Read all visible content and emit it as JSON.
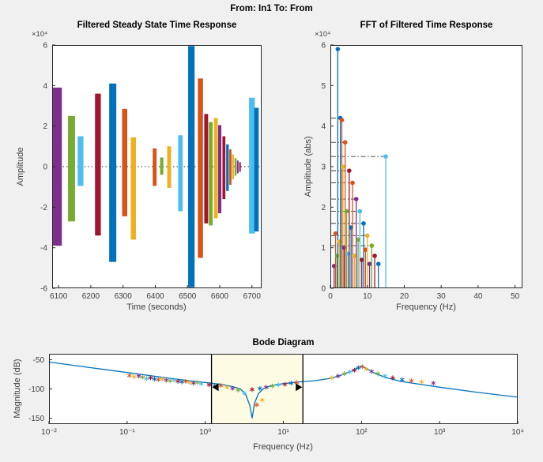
{
  "figure": {
    "title": "From: In1  To: From",
    "background": "#f0f0f0"
  },
  "palette": [
    "#0072BD",
    "#D95319",
    "#EDB120",
    "#7E2F8E",
    "#77AC30",
    "#4DBEEE",
    "#A2142F"
  ],
  "chart_data": [
    {
      "id": "time_response",
      "type": "bar",
      "title": "Filtered Steady State Time Response",
      "xlabel": "Time (seconds)",
      "ylabel": "Amplitude",
      "y_exponent": "×10⁴",
      "xlim": [
        6080,
        6730
      ],
      "ylim": [
        -6,
        6
      ],
      "xticks": [
        6100,
        6200,
        6300,
        6400,
        6500,
        6600,
        6700
      ],
      "yticks": [
        -6,
        -4,
        -2,
        0,
        2,
        4,
        6
      ],
      "zero_line_y": 0,
      "bars": [
        {
          "t": 6095,
          "w": 30,
          "lo": -3.9,
          "hi": 3.9,
          "c": 3
        },
        {
          "t": 6140,
          "w": 22,
          "lo": -2.7,
          "hi": 2.5,
          "c": 4
        },
        {
          "t": 6168,
          "w": 18,
          "lo": -0.95,
          "hi": 1.5,
          "c": 5
        },
        {
          "t": 6222,
          "w": 18,
          "lo": -3.4,
          "hi": 3.6,
          "c": 6
        },
        {
          "t": 6268,
          "w": 22,
          "lo": -4.7,
          "hi": 4.1,
          "c": 0
        },
        {
          "t": 6305,
          "w": 16,
          "lo": -2.45,
          "hi": 2.85,
          "c": 1
        },
        {
          "t": 6332,
          "w": 16,
          "lo": -3.6,
          "hi": 1.45,
          "c": 2
        },
        {
          "t": 6398,
          "w": 12,
          "lo": -0.95,
          "hi": 0.9,
          "c": 1
        },
        {
          "t": 6420,
          "w": 10,
          "lo": -0.4,
          "hi": 0.45,
          "c": 4
        },
        {
          "t": 6443,
          "w": 12,
          "lo": -1.05,
          "hi": 1.0,
          "c": 2
        },
        {
          "t": 6478,
          "w": 14,
          "lo": -2.2,
          "hi": 1.55,
          "c": 5
        },
        {
          "t": 6512,
          "w": 20,
          "lo": -5.95,
          "hi": 5.95,
          "c": 0
        },
        {
          "t": 6540,
          "w": 16,
          "lo": -4.5,
          "hi": 4.35,
          "c": 1
        },
        {
          "t": 6558,
          "w": 12,
          "lo": -2.8,
          "hi": 2.6,
          "c": 6
        },
        {
          "t": 6572,
          "w": 12,
          "lo": -2.9,
          "hi": 2.2,
          "c": 4
        },
        {
          "t": 6588,
          "w": 12,
          "lo": -2.55,
          "hi": 2.4,
          "c": 2
        },
        {
          "t": 6600,
          "w": 10,
          "lo": -2.3,
          "hi": 2.05,
          "c": 3
        },
        {
          "t": 6613,
          "w": 9,
          "lo": -1.6,
          "hi": 1.5,
          "c": 6
        },
        {
          "t": 6624,
          "w": 8,
          "lo": -1.2,
          "hi": 1.1,
          "c": 0
        },
        {
          "t": 6633,
          "w": 7,
          "lo": -0.9,
          "hi": 0.85,
          "c": 1
        },
        {
          "t": 6641,
          "w": 6,
          "lo": -0.62,
          "hi": 0.6,
          "c": 2
        },
        {
          "t": 6649,
          "w": 6,
          "lo": -0.45,
          "hi": 0.42,
          "c": 4
        },
        {
          "t": 6656,
          "w": 5,
          "lo": -0.33,
          "hi": 0.3,
          "c": 3
        },
        {
          "t": 6663,
          "w": 5,
          "lo": -0.25,
          "hi": 0.22,
          "c": 6
        },
        {
          "t": 6700,
          "w": 18,
          "lo": -3.3,
          "hi": 3.4,
          "c": 5
        },
        {
          "t": 6714,
          "w": 14,
          "lo": -3.2,
          "hi": 2.9,
          "c": 0
        }
      ]
    },
    {
      "id": "fft",
      "type": "stem",
      "title": "FFT of Filtered Time Response",
      "xlabel": "Frequency (Hz)",
      "ylabel": "Amplitude (abs)",
      "y_exponent": "×10⁴",
      "xlim": [
        0,
        52
      ],
      "ylim": [
        0,
        6
      ],
      "xticks": [
        0,
        10,
        20,
        30,
        40,
        50
      ],
      "yticks": [
        0,
        1,
        2,
        3,
        4,
        5,
        6
      ],
      "stems": [
        {
          "f": 1.0,
          "a": 0.55,
          "c": 3
        },
        {
          "f": 1.4,
          "a": 1.35,
          "c": 1
        },
        {
          "f": 1.8,
          "a": 0.8,
          "c": 4
        },
        {
          "f": 2.0,
          "a": 5.9,
          "c": 0
        },
        {
          "f": 2.4,
          "a": 1.15,
          "c": 2
        },
        {
          "f": 2.7,
          "a": 4.2,
          "c": 0
        },
        {
          "f": 3.1,
          "a": 4.15,
          "c": 1
        },
        {
          "f": 3.4,
          "a": 3.0,
          "c": 2
        },
        {
          "f": 3.7,
          "a": 1.0,
          "c": 3
        },
        {
          "f": 4.0,
          "a": 3.6,
          "c": 1
        },
        {
          "f": 4.4,
          "a": 1.9,
          "c": 4
        },
        {
          "f": 4.8,
          "a": 0.85,
          "c": 5
        },
        {
          "f": 5.1,
          "a": 2.9,
          "c": 6
        },
        {
          "f": 5.6,
          "a": 1.5,
          "c": 0
        },
        {
          "f": 6.0,
          "a": 2.6,
          "c": 1
        },
        {
          "f": 6.5,
          "a": 0.8,
          "c": 2
        },
        {
          "f": 7.0,
          "a": 2.2,
          "c": 3
        },
        {
          "f": 7.5,
          "a": 1.2,
          "c": 4
        },
        {
          "f": 8.0,
          "a": 1.9,
          "c": 5
        },
        {
          "f": 8.5,
          "a": 0.7,
          "c": 6
        },
        {
          "f": 9.0,
          "a": 1.6,
          "c": 0
        },
        {
          "f": 9.5,
          "a": 0.95,
          "c": 1
        },
        {
          "f": 10.0,
          "a": 1.3,
          "c": 2
        },
        {
          "f": 10.6,
          "a": 0.6,
          "c": 3
        },
        {
          "f": 11.2,
          "a": 1.05,
          "c": 4
        },
        {
          "f": 12.0,
          "a": 0.8,
          "c": 6
        },
        {
          "f": 13.0,
          "a": 0.6,
          "c": 0
        },
        {
          "f": 15.0,
          "a": 3.25,
          "c": 5
        }
      ],
      "threshold_lines": [
        {
          "y": 4.2,
          "x_end": 2.7
        },
        {
          "y": 3.6,
          "x_end": 4.0
        },
        {
          "y": 3.25,
          "x_end": 15.0
        },
        {
          "y": 2.9,
          "x_end": 5.1
        },
        {
          "y": 2.6,
          "x_end": 6.0
        },
        {
          "y": 2.2,
          "x_end": 7.0
        },
        {
          "y": 1.9,
          "x_end": 8.0
        },
        {
          "y": 1.6,
          "x_end": 9.0
        },
        {
          "y": 1.3,
          "x_end": 10.0
        },
        {
          "y": 1.05,
          "x_end": 11.2
        }
      ]
    },
    {
      "id": "bode",
      "type": "line",
      "title": "Bode Diagram",
      "xlabel": "Frequency  (Hz)",
      "ylabel": "Magnitude (dB)",
      "xlim_log10": [
        -2,
        4
      ],
      "ylim": [
        -160,
        -40
      ],
      "xticks_log10": [
        -2,
        -1,
        0,
        1,
        2,
        3,
        4
      ],
      "xtick_labels": [
        "10⁻²",
        "10⁻¹",
        "10⁰",
        "10¹",
        "10²",
        "10³",
        "10⁴"
      ],
      "yticks": [
        -150,
        -100,
        -50
      ],
      "band": {
        "start_log10": 0.08,
        "end_log10": 1.25,
        "fill": "#fdfbe4",
        "handle_db": -97
      },
      "curve_color": "#0072BD",
      "curve": [
        [
          -2,
          -54
        ],
        [
          -1.5,
          -63
        ],
        [
          -1,
          -72
        ],
        [
          -0.5,
          -81
        ],
        [
          -0.2,
          -86
        ],
        [
          0,
          -89
        ],
        [
          0.2,
          -92
        ],
        [
          0.35,
          -96
        ],
        [
          0.45,
          -100
        ],
        [
          0.52,
          -110
        ],
        [
          0.57,
          -128
        ],
        [
          0.6,
          -150
        ],
        [
          0.63,
          -125
        ],
        [
          0.68,
          -108
        ],
        [
          0.75,
          -99
        ],
        [
          0.85,
          -94
        ],
        [
          1,
          -91
        ],
        [
          1.2,
          -88
        ],
        [
          1.4,
          -86
        ],
        [
          1.6,
          -82
        ],
        [
          1.75,
          -76
        ],
        [
          1.88,
          -69
        ],
        [
          1.96,
          -63
        ],
        [
          2.0,
          -61
        ],
        [
          2.06,
          -65
        ],
        [
          2.15,
          -72
        ],
        [
          2.3,
          -80
        ],
        [
          2.5,
          -87
        ],
        [
          2.75,
          -92
        ],
        [
          3,
          -97
        ],
        [
          3.5,
          -106
        ],
        [
          4,
          -114
        ]
      ],
      "markers": [
        [
          -0.97,
          -77,
          1
        ],
        [
          -0.91,
          -79,
          2
        ],
        [
          -0.85,
          -78,
          3
        ],
        [
          -0.8,
          -80,
          4
        ],
        [
          -0.75,
          -82,
          5
        ],
        [
          -0.7,
          -81,
          6
        ],
        [
          -0.65,
          -83,
          0
        ],
        [
          -0.6,
          -84,
          1
        ],
        [
          -0.55,
          -83,
          2
        ],
        [
          -0.5,
          -85,
          3
        ],
        [
          -0.45,
          -86,
          4
        ],
        [
          -0.4,
          -85,
          5
        ],
        [
          -0.35,
          -87,
          6
        ],
        [
          -0.3,
          -88,
          0
        ],
        [
          -0.25,
          -87,
          1
        ],
        [
          -0.2,
          -89,
          2
        ],
        [
          -0.15,
          -90,
          3
        ],
        [
          -0.1,
          -89,
          4
        ],
        [
          -0.05,
          -91,
          5
        ],
        [
          0.05,
          -93,
          6
        ],
        [
          0.12,
          -95,
          0
        ],
        [
          0.2,
          -94,
          1
        ],
        [
          0.28,
          -97,
          2
        ],
        [
          0.35,
          -99,
          3
        ],
        [
          0.42,
          -102,
          4
        ],
        [
          0.5,
          -107,
          5
        ],
        [
          0.66,
          -127,
          1
        ],
        [
          0.73,
          -119,
          2
        ],
        [
          0.6,
          -101,
          6
        ],
        [
          0.7,
          -99,
          0
        ],
        [
          0.78,
          -97,
          3
        ],
        [
          0.86,
          -95,
          4
        ],
        [
          0.94,
          -93,
          5
        ],
        [
          1.02,
          -92,
          6
        ],
        [
          1.1,
          -90,
          0
        ],
        [
          1.17,
          -89,
          1
        ],
        [
          1.62,
          -81,
          2
        ],
        [
          1.7,
          -78,
          3
        ],
        [
          1.78,
          -74,
          4
        ],
        [
          1.85,
          -71,
          5
        ],
        [
          1.91,
          -68,
          6
        ],
        [
          1.96,
          -64,
          0
        ],
        [
          2.01,
          -62,
          1
        ],
        [
          2.06,
          -66,
          2
        ],
        [
          2.13,
          -70,
          3
        ],
        [
          2.21,
          -74,
          4
        ],
        [
          2.3,
          -78,
          5
        ],
        [
          2.4,
          -81,
          6
        ],
        [
          2.52,
          -84,
          0
        ],
        [
          2.64,
          -86,
          1
        ],
        [
          2.77,
          -88,
          2
        ],
        [
          2.92,
          -90,
          3
        ]
      ]
    }
  ]
}
